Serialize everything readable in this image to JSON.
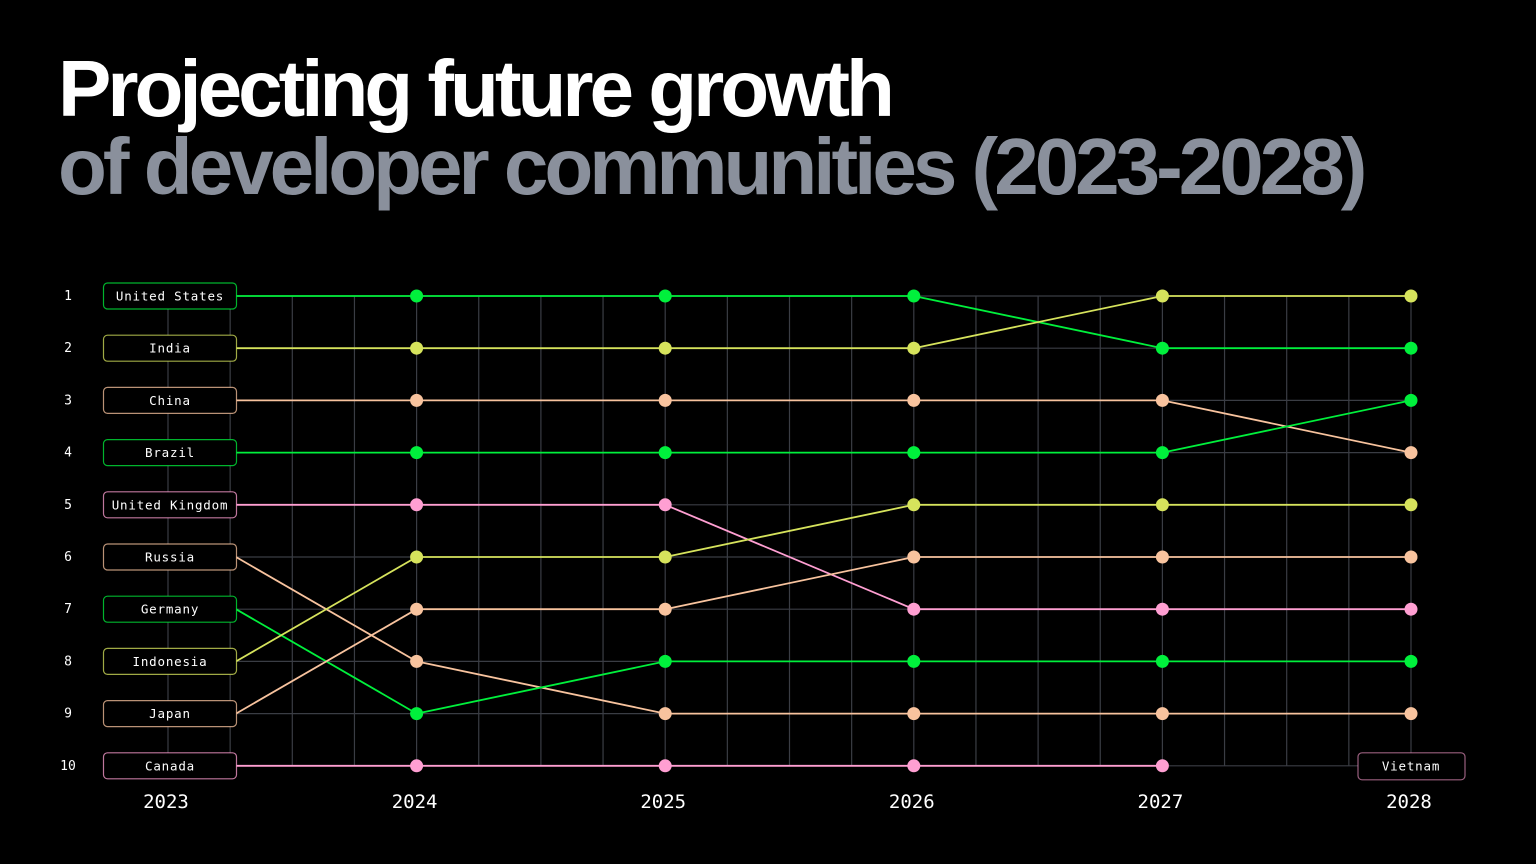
{
  "title_line1": "Projecting future growth",
  "title_line2": "of developer communities (2023-2028)",
  "chart_data": {
    "type": "bump",
    "years": [
      "2023",
      "2024",
      "2025",
      "2026",
      "2027",
      "2028"
    ],
    "rank_labels": [
      "1",
      "2",
      "3",
      "4",
      "5",
      "6",
      "7",
      "8",
      "9",
      "10"
    ],
    "grid": true,
    "colors": {
      "green": "#00f03c",
      "yellow": "#d6e35c",
      "peach": "#f8c39e",
      "pink": "#ff9fd2",
      "grid": "#3a3d44"
    },
    "series": [
      {
        "name": "United States",
        "color": "green",
        "ranks": [
          1,
          1,
          1,
          1,
          2,
          2
        ]
      },
      {
        "name": "India",
        "color": "yellow",
        "ranks": [
          2,
          2,
          2,
          2,
          1,
          1
        ]
      },
      {
        "name": "China",
        "color": "peach",
        "ranks": [
          3,
          3,
          3,
          3,
          3,
          4
        ]
      },
      {
        "name": "Brazil",
        "color": "green",
        "ranks": [
          4,
          4,
          4,
          4,
          4,
          3
        ]
      },
      {
        "name": "United Kingdom",
        "color": "pink",
        "ranks": [
          5,
          5,
          5,
          7,
          7,
          7
        ]
      },
      {
        "name": "Russia",
        "color": "peach",
        "ranks": [
          6,
          8,
          9,
          9,
          9,
          9
        ]
      },
      {
        "name": "Germany",
        "color": "green",
        "ranks": [
          7,
          9,
          8,
          8,
          8,
          8
        ]
      },
      {
        "name": "Indonesia",
        "color": "yellow",
        "ranks": [
          8,
          6,
          6,
          5,
          5,
          5
        ]
      },
      {
        "name": "Japan",
        "color": "peach",
        "ranks": [
          9,
          7,
          7,
          6,
          6,
          6
        ]
      },
      {
        "name": "Canada",
        "color": "pink",
        "ranks": [
          10,
          10,
          10,
          10,
          10,
          null
        ]
      }
    ],
    "entrant": {
      "name": "Vietnam",
      "color": "pink",
      "year": "2028",
      "rank": 10
    }
  }
}
